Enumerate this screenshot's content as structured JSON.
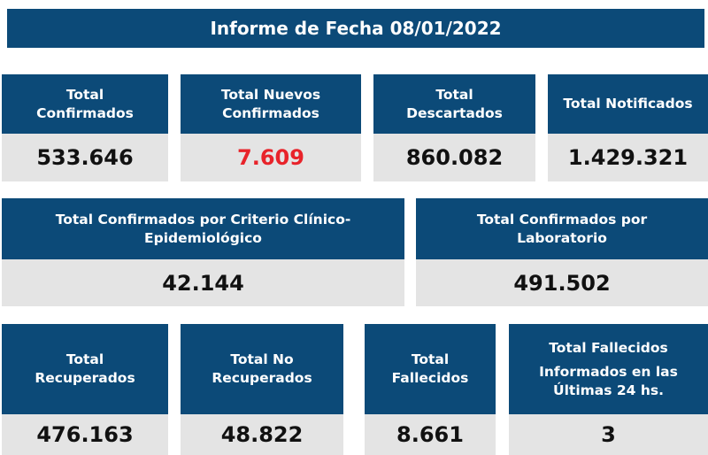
{
  "banner": {
    "title": "Informe de Fecha 08/01/2022"
  },
  "colors": {
    "header_bg": "#0c4a78",
    "value_bg": "#e4e4e4",
    "highlight": "#e8232a"
  },
  "row1": [
    {
      "label_lines": [
        "Total",
        "Confirmados"
      ],
      "value": "533.646"
    },
    {
      "label_lines": [
        "Total Nuevos",
        "Confirmados"
      ],
      "value": "7.609"
    },
    {
      "label_lines": [
        "Total",
        "Descartados"
      ],
      "value": "860.082"
    },
    {
      "label_lines": [
        "Total Notificados"
      ],
      "value": "1.429.321"
    }
  ],
  "row2": [
    {
      "label_lines": [
        "Total Confirmados por Criterio Clínico-",
        "Epidemiológico"
      ],
      "value": "42.144"
    },
    {
      "label_lines": [
        "Total Confirmados por",
        "Laboratorio"
      ],
      "value": "491.502"
    }
  ],
  "row3": [
    {
      "label_lines": [
        "Total",
        "Recuperados"
      ],
      "value": "476.163"
    },
    {
      "label_lines": [
        "Total No",
        "Recuperados"
      ],
      "value": "48.822"
    },
    {
      "label_lines": [
        "Total",
        "Fallecidos"
      ],
      "value": "8.661"
    },
    {
      "label_lines": [
        "Total Fallecidos",
        "Informados en las",
        "Últimas 24 hs."
      ],
      "value": "3"
    }
  ]
}
